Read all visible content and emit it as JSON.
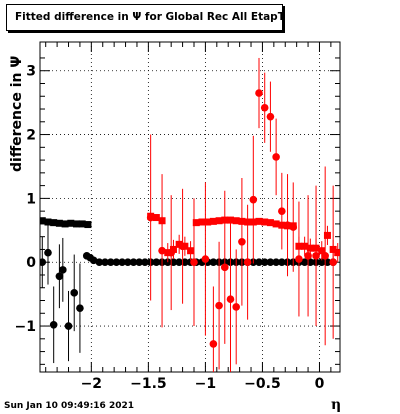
{
  "chart_data": {
    "type": "scatter",
    "title": "Fitted difference in  Ψ  for Global Rec All EtapT",
    "xlabel": "η",
    "ylabel": "difference in  Ψ",
    "xlim": [
      -2.45,
      0.18
    ],
    "ylim": [
      -1.72,
      3.45
    ],
    "x_ticks": [
      -2,
      -1.5,
      -1,
      -0.5,
      0
    ],
    "x_tick_labels": [
      "−2",
      "−1.5",
      "−1",
      "−0.5",
      "0"
    ],
    "y_ticks": [
      -1,
      0,
      1,
      2,
      3
    ],
    "y_tick_labels": [
      "−1",
      "0",
      "1",
      "2",
      "3"
    ],
    "grid": true,
    "series": [
      {
        "color": "#000000",
        "marker": "square",
        "points": [
          {
            "x": -2.43,
            "y": 0.65,
            "err": 0.05
          },
          {
            "x": -2.38,
            "y": 0.63,
            "err": 0.05
          },
          {
            "x": -2.33,
            "y": 0.62,
            "err": 0.05
          },
          {
            "x": -2.28,
            "y": 0.61,
            "err": 0.05
          },
          {
            "x": -2.23,
            "y": 0.6,
            "err": 0.05
          },
          {
            "x": -2.18,
            "y": 0.61,
            "err": 0.05
          },
          {
            "x": -2.13,
            "y": 0.6,
            "err": 0.05
          },
          {
            "x": -2.08,
            "y": 0.6,
            "err": 0.05
          },
          {
            "x": -2.03,
            "y": 0.59,
            "err": 0.05
          }
        ]
      },
      {
        "color": "#000000",
        "marker": "circle",
        "points": [
          {
            "x": -2.43,
            "y": 0.0,
            "err": 0.4
          },
          {
            "x": -2.38,
            "y": 0.15,
            "err": 0.5
          },
          {
            "x": -2.33,
            "y": -0.98,
            "err": 0.6
          },
          {
            "x": -2.28,
            "y": -0.22,
            "err": 0.5
          },
          {
            "x": -2.25,
            "y": -0.12,
            "err": 0.5
          },
          {
            "x": -2.2,
            "y": -1.0,
            "err": 0.55
          },
          {
            "x": -2.15,
            "y": -0.48,
            "err": 0.6
          },
          {
            "x": -2.1,
            "y": -0.72,
            "err": 0.7
          },
          {
            "x": -2.04,
            "y": 0.1,
            "err": 0.05
          },
          {
            "x": -2.01,
            "y": 0.07,
            "err": 0.05
          },
          {
            "x": -1.98,
            "y": 0.03,
            "err": 0.04
          },
          {
            "x": -1.93,
            "y": 0.0,
            "err": 0.03
          },
          {
            "x": -1.88,
            "y": 0.0,
            "err": 0.03
          },
          {
            "x": -1.83,
            "y": 0.0,
            "err": 0.03
          },
          {
            "x": -1.78,
            "y": 0.0,
            "err": 0.03
          },
          {
            "x": -1.73,
            "y": 0.0,
            "err": 0.03
          },
          {
            "x": -1.68,
            "y": 0.0,
            "err": 0.03
          },
          {
            "x": -1.63,
            "y": 0.0,
            "err": 0.03
          },
          {
            "x": -1.58,
            "y": 0.0,
            "err": 0.03
          },
          {
            "x": -1.53,
            "y": 0.0,
            "err": 0.03
          },
          {
            "x": -1.48,
            "y": 0.0,
            "err": 0.03
          },
          {
            "x": -1.43,
            "y": 0.0,
            "err": 0.03
          },
          {
            "x": -1.38,
            "y": 0.0,
            "err": 0.03
          },
          {
            "x": -1.33,
            "y": 0.0,
            "err": 0.03
          },
          {
            "x": -1.28,
            "y": 0.0,
            "err": 0.03
          },
          {
            "x": -1.23,
            "y": 0.0,
            "err": 0.03
          },
          {
            "x": -1.18,
            "y": 0.0,
            "err": 0.03
          },
          {
            "x": -1.13,
            "y": 0.0,
            "err": 0.03
          },
          {
            "x": -1.08,
            "y": 0.0,
            "err": 0.03
          },
          {
            "x": -1.03,
            "y": 0.0,
            "err": 0.03
          },
          {
            "x": -0.98,
            "y": 0.0,
            "err": 0.03
          },
          {
            "x": -0.93,
            "y": 0.0,
            "err": 0.03
          },
          {
            "x": -0.88,
            "y": 0.0,
            "err": 0.03
          },
          {
            "x": -0.83,
            "y": 0.0,
            "err": 0.03
          },
          {
            "x": -0.78,
            "y": 0.0,
            "err": 0.03
          },
          {
            "x": -0.73,
            "y": 0.0,
            "err": 0.03
          },
          {
            "x": -0.68,
            "y": 0.0,
            "err": 0.03
          },
          {
            "x": -0.63,
            "y": 0.0,
            "err": 0.03
          },
          {
            "x": -0.58,
            "y": 0.0,
            "err": 0.03
          },
          {
            "x": -0.53,
            "y": 0.0,
            "err": 0.03
          },
          {
            "x": -0.48,
            "y": 0.0,
            "err": 0.03
          },
          {
            "x": -0.43,
            "y": 0.0,
            "err": 0.03
          },
          {
            "x": -0.38,
            "y": 0.0,
            "err": 0.03
          },
          {
            "x": -0.33,
            "y": 0.0,
            "err": 0.03
          },
          {
            "x": -0.28,
            "y": 0.0,
            "err": 0.03
          },
          {
            "x": -0.23,
            "y": 0.0,
            "err": 0.03
          },
          {
            "x": -0.18,
            "y": 0.0,
            "err": 0.03
          },
          {
            "x": -0.13,
            "y": 0.0,
            "err": 0.03
          },
          {
            "x": -0.08,
            "y": 0.0,
            "err": 0.03
          },
          {
            "x": -0.03,
            "y": 0.0,
            "err": 0.03
          },
          {
            "x": 0.02,
            "y": 0.0,
            "err": 0.03
          },
          {
            "x": 0.07,
            "y": 0.0,
            "err": 0.03
          },
          {
            "x": 0.12,
            "y": 0.0,
            "err": 0.03
          }
        ]
      },
      {
        "color": "#ff0000",
        "marker": "square",
        "points": [
          {
            "x": -1.48,
            "y": 0.72,
            "err": 0.05
          },
          {
            "x": -1.43,
            "y": 0.7,
            "err": 0.05
          },
          {
            "x": -1.38,
            "y": 0.65,
            "err": 0.08
          },
          {
            "x": -1.33,
            "y": 0.15,
            "err": 0.15
          },
          {
            "x": -1.28,
            "y": 0.2,
            "err": 0.15
          },
          {
            "x": -1.23,
            "y": 0.28,
            "err": 0.15
          },
          {
            "x": -1.18,
            "y": 0.25,
            "err": 0.15
          },
          {
            "x": -1.13,
            "y": 0.18,
            "err": 0.15
          },
          {
            "x": -1.08,
            "y": 0.62,
            "err": 0.05
          },
          {
            "x": -1.03,
            "y": 0.63,
            "err": 0.05
          },
          {
            "x": -0.98,
            "y": 0.63,
            "err": 0.05
          },
          {
            "x": -0.93,
            "y": 0.64,
            "err": 0.05
          },
          {
            "x": -0.88,
            "y": 0.65,
            "err": 0.05
          },
          {
            "x": -0.83,
            "y": 0.66,
            "err": 0.05
          },
          {
            "x": -0.78,
            "y": 0.66,
            "err": 0.05
          },
          {
            "x": -0.73,
            "y": 0.65,
            "err": 0.05
          },
          {
            "x": -0.68,
            "y": 0.64,
            "err": 0.05
          },
          {
            "x": -0.63,
            "y": 0.63,
            "err": 0.05
          },
          {
            "x": -0.58,
            "y": 0.63,
            "err": 0.05
          },
          {
            "x": -0.53,
            "y": 0.64,
            "err": 0.05
          },
          {
            "x": -0.48,
            "y": 0.63,
            "err": 0.05
          },
          {
            "x": -0.43,
            "y": 0.62,
            "err": 0.05
          },
          {
            "x": -0.38,
            "y": 0.6,
            "err": 0.05
          },
          {
            "x": -0.33,
            "y": 0.58,
            "err": 0.05
          },
          {
            "x": -0.28,
            "y": 0.57,
            "err": 0.05
          },
          {
            "x": -0.23,
            "y": 0.57,
            "err": 0.05
          },
          {
            "x": -0.18,
            "y": 0.25,
            "err": 0.15
          },
          {
            "x": -0.13,
            "y": 0.25,
            "err": 0.15
          },
          {
            "x": -0.08,
            "y": 0.22,
            "err": 0.15
          },
          {
            "x": -0.03,
            "y": 0.22,
            "err": 0.15
          },
          {
            "x": 0.02,
            "y": 0.18,
            "err": 0.15
          },
          {
            "x": 0.07,
            "y": 0.42,
            "err": 0.15
          },
          {
            "x": 0.12,
            "y": 0.2,
            "err": 0.15
          },
          {
            "x": 0.16,
            "y": 0.15,
            "err": 0.15
          }
        ]
      },
      {
        "color": "#ff0000",
        "marker": "circle",
        "points": [
          {
            "x": -1.48,
            "y": 0.7,
            "err": 1.3
          },
          {
            "x": -1.38,
            "y": 0.18,
            "err": 1.2
          },
          {
            "x": -1.3,
            "y": 0.15,
            "err": 0.9
          },
          {
            "x": -1.2,
            "y": 0.25,
            "err": 0.9
          },
          {
            "x": -1.1,
            "y": 0.0,
            "err": 1.0
          },
          {
            "x": -1.0,
            "y": 0.05,
            "err": 1.2
          },
          {
            "x": -0.93,
            "y": -1.28,
            "err": 0.9
          },
          {
            "x": -0.88,
            "y": -0.68,
            "err": 1.0
          },
          {
            "x": -0.83,
            "y": -0.08,
            "err": 1.2
          },
          {
            "x": -0.78,
            "y": -0.58,
            "err": 1.2
          },
          {
            "x": -0.73,
            "y": -0.7,
            "err": 0.9
          },
          {
            "x": -0.68,
            "y": 0.32,
            "err": 1.0
          },
          {
            "x": -0.63,
            "y": 0.0,
            "err": 0.9
          },
          {
            "x": -0.58,
            "y": 0.98,
            "err": 1.0
          },
          {
            "x": -0.53,
            "y": 2.65,
            "err": 0.55
          },
          {
            "x": -0.48,
            "y": 2.42,
            "err": 0.55
          },
          {
            "x": -0.43,
            "y": 2.28,
            "err": 0.55
          },
          {
            "x": -0.38,
            "y": 1.65,
            "err": 0.6
          },
          {
            "x": -0.33,
            "y": 0.8,
            "err": 0.6
          },
          {
            "x": -0.28,
            "y": 0.58,
            "err": 0.8
          },
          {
            "x": -0.23,
            "y": 0.55,
            "err": 0.7
          },
          {
            "x": -0.18,
            "y": 0.05,
            "err": 0.9
          },
          {
            "x": -0.1,
            "y": 0.1,
            "err": 0.95
          },
          {
            "x": -0.03,
            "y": 0.1,
            "err": 1.1
          },
          {
            "x": 0.05,
            "y": 0.1,
            "err": 1.4
          },
          {
            "x": 0.12,
            "y": 0.0,
            "err": 1.2
          }
        ]
      }
    ]
  },
  "footer": {
    "timestamp": "Sun Jan 10 09:49:16 2021"
  }
}
